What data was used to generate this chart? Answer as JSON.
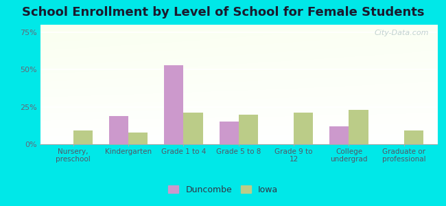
{
  "title": "School Enrollment by Level of School for Female Students",
  "categories": [
    "Nursery,\npreschool",
    "Kindergarten",
    "Grade 1 to 4",
    "Grade 5 to 8",
    "Grade 9 to\n12",
    "College\nundergrad",
    "Graduate or\nprofessional"
  ],
  "duncombe": [
    0,
    19,
    53,
    15,
    0,
    12,
    0
  ],
  "iowa": [
    9,
    8,
    21,
    20,
    21,
    23,
    9
  ],
  "duncombe_color": "#cc99cc",
  "iowa_color": "#bbcc88",
  "background_outer": "#00e8e8",
  "plot_bg_top": "#e8f0dc",
  "plot_bg_bottom": "#f8fef4",
  "yticks": [
    0,
    25,
    50,
    75
  ],
  "ylim": [
    0,
    80
  ],
  "bar_width": 0.35,
  "title_fontsize": 13,
  "watermark": "City-Data.com"
}
